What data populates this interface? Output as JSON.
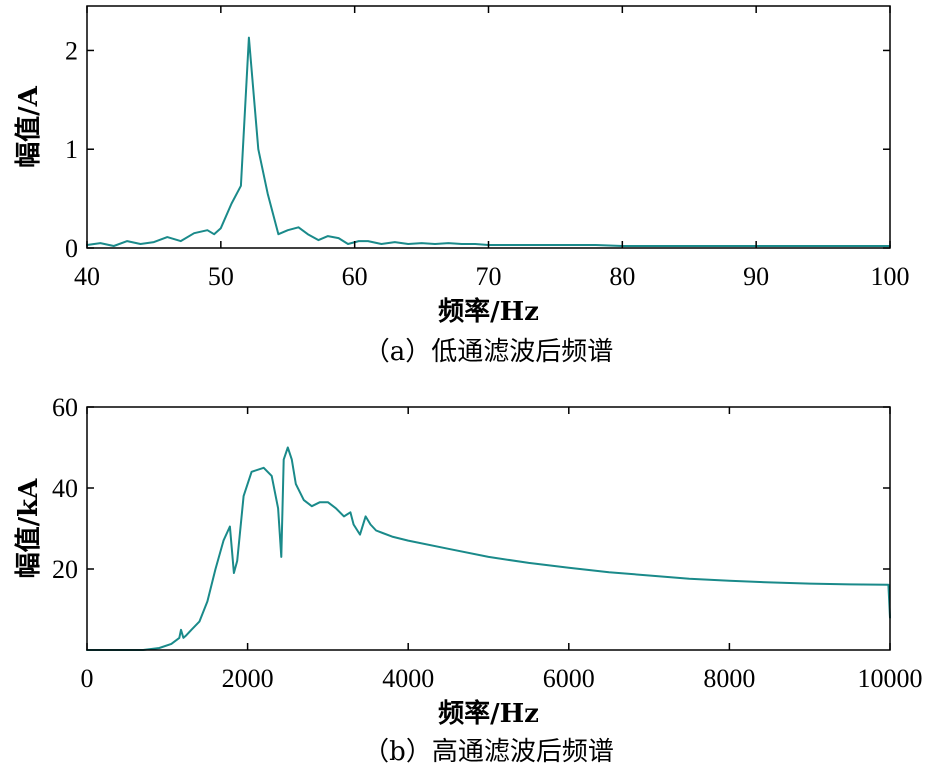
{
  "colors": {
    "line": "#1a8a8a",
    "axis": "#000000"
  },
  "chart_data": [
    {
      "type": "line",
      "caption": "（a）低通滤波后频谱",
      "xlabel": "频率/Hz",
      "ylabel": "幅值/A",
      "xlim": [
        40,
        100
      ],
      "ylim": [
        0,
        2.45
      ],
      "xticks": [
        40,
        50,
        60,
        70,
        80,
        90,
        100
      ],
      "xtick_labels": [
        "40",
        "50",
        "60",
        "70",
        "80",
        "90",
        "100"
      ],
      "yticks": [
        0,
        1,
        2
      ],
      "ytick_labels": [
        "0",
        "1",
        "2"
      ],
      "grid": false,
      "series": [
        {
          "x": [
            40,
            41,
            42,
            43,
            44,
            45,
            46,
            47,
            48,
            49,
            49.5,
            50,
            50.8,
            51.5,
            52.1,
            52.8,
            53.5,
            54.3,
            55,
            55.8,
            56.5,
            57.3,
            58,
            58.8,
            59.5,
            60.3,
            61,
            62,
            63,
            64,
            65,
            66,
            67,
            68,
            69,
            70,
            72,
            75,
            78,
            80,
            85,
            90,
            95,
            100
          ],
          "y": [
            0.03,
            0.05,
            0.02,
            0.07,
            0.04,
            0.06,
            0.11,
            0.07,
            0.15,
            0.18,
            0.14,
            0.2,
            0.45,
            0.63,
            2.13,
            1.0,
            0.55,
            0.14,
            0.18,
            0.21,
            0.14,
            0.08,
            0.12,
            0.1,
            0.04,
            0.07,
            0.07,
            0.04,
            0.06,
            0.04,
            0.05,
            0.04,
            0.05,
            0.04,
            0.04,
            0.03,
            0.03,
            0.03,
            0.03,
            0.02,
            0.02,
            0.02,
            0.02,
            0.02
          ]
        }
      ]
    },
    {
      "type": "line",
      "caption": "（b）高通滤波后频谱",
      "xlabel": "频率/Hz",
      "ylabel": "幅值/kA",
      "xlim": [
        0,
        10000
      ],
      "ylim": [
        0,
        60
      ],
      "xticks": [
        0,
        2000,
        4000,
        6000,
        8000,
        10000
      ],
      "xtick_labels": [
        "0",
        "2000",
        "4000",
        "6000",
        "8000",
        "10000"
      ],
      "yticks": [
        20,
        40,
        60
      ],
      "ytick_labels": [
        "20",
        "40",
        "60"
      ],
      "grid": false,
      "series": [
        {
          "x": [
            0,
            700,
            900,
            1050,
            1150,
            1170,
            1200,
            1230,
            1300,
            1400,
            1500,
            1600,
            1700,
            1780,
            1830,
            1870,
            1900,
            1950,
            2050,
            2200,
            2300,
            2380,
            2420,
            2450,
            2500,
            2550,
            2600,
            2700,
            2800,
            2900,
            3000,
            3100,
            3200,
            3280,
            3320,
            3400,
            3470,
            3530,
            3600,
            3800,
            4000,
            4500,
            5000,
            5500,
            6000,
            6500,
            7000,
            7500,
            8000,
            8500,
            9000,
            9500,
            9980,
            10000
          ],
          "y": [
            0,
            0,
            0.5,
            1.5,
            3,
            5,
            3,
            3.5,
            5,
            7,
            12,
            20,
            27,
            30.5,
            19,
            22,
            28,
            38,
            44,
            45,
            43,
            35,
            23,
            47,
            50,
            47,
            41,
            37,
            35.5,
            36.5,
            36.5,
            35,
            33,
            34,
            31,
            28.5,
            33,
            31,
            29.5,
            28,
            27,
            25,
            23,
            21.5,
            20.3,
            19.2,
            18.4,
            17.6,
            17.1,
            16.7,
            16.4,
            16.2,
            16.1,
            8
          ]
        }
      ]
    }
  ]
}
